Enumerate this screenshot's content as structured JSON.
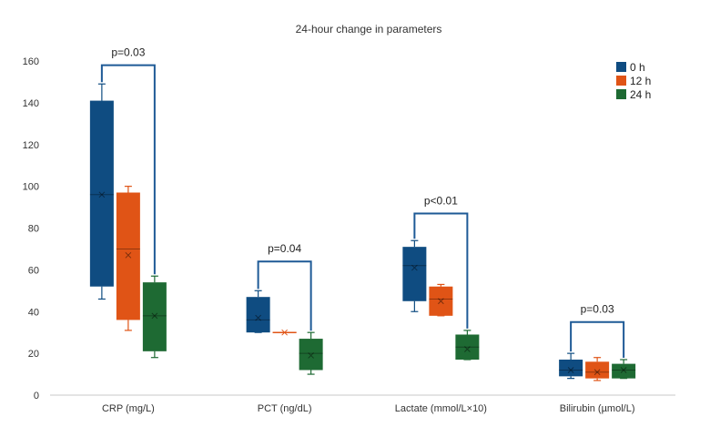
{
  "chart_data": {
    "type": "box",
    "title": "24-hour change in parameters",
    "ylim": [
      0,
      160
    ],
    "yticks": [
      0,
      20,
      40,
      60,
      80,
      100,
      120,
      140,
      160
    ],
    "ytick_labels": [
      "0",
      "20",
      "40",
      "60",
      "80",
      "100",
      "120",
      "140",
      "160"
    ],
    "categories": [
      "CRP (mg/L)",
      "PCT (ng/dL)",
      "Lactate (mmol/L×10)",
      "Bilirubin (µmol/L)"
    ],
    "series": [
      {
        "name": "0 h",
        "color": "#0f4c81",
        "boxes": [
          {
            "min": 46,
            "q1": 52,
            "median": 96,
            "mean": 96,
            "q3": 141,
            "max": 149
          },
          {
            "min": 30,
            "q1": 30,
            "median": 36,
            "mean": 37,
            "q3": 47,
            "max": 50
          },
          {
            "min": 40,
            "q1": 45,
            "median": 62,
            "mean": 61,
            "q3": 71,
            "max": 74
          },
          {
            "min": 8,
            "q1": 9,
            "median": 12,
            "mean": 12,
            "q3": 17,
            "max": 20
          }
        ]
      },
      {
        "name": "12 h",
        "color": "#e05416",
        "boxes": [
          {
            "min": 31,
            "q1": 36,
            "median": 70,
            "mean": 67,
            "q3": 97,
            "max": 100
          },
          {
            "min": 30,
            "q1": 30,
            "median": 30,
            "mean": 30,
            "q3": 30,
            "max": 30
          },
          {
            "min": 38,
            "q1": 38,
            "median": 46,
            "mean": 45,
            "q3": 52,
            "max": 53
          },
          {
            "min": 7,
            "q1": 8,
            "median": 11,
            "mean": 11,
            "q3": 16,
            "max": 18
          }
        ]
      },
      {
        "name": "24 h",
        "color": "#1e6a33",
        "boxes": [
          {
            "min": 18,
            "q1": 21,
            "median": 38,
            "mean": 38,
            "q3": 54,
            "max": 57
          },
          {
            "min": 10,
            "q1": 12,
            "median": 20,
            "mean": 19,
            "q3": 27,
            "max": 30
          },
          {
            "min": 17,
            "q1": 17,
            "median": 23,
            "mean": 22,
            "q3": 29,
            "max": 31
          },
          {
            "min": 8,
            "q1": 8,
            "median": 12,
            "mean": 12,
            "q3": 15,
            "max": 17
          }
        ]
      }
    ],
    "annotations": [
      {
        "text": "p=0.03",
        "category": 0,
        "y": 158
      },
      {
        "text": "p=0.04",
        "category": 1,
        "y": 64
      },
      {
        "text": "p<0.01",
        "category": 2,
        "y": 87
      },
      {
        "text": "p=0.03",
        "category": 3,
        "y": 35
      }
    ],
    "legend": {
      "position": "top-right",
      "entries": [
        "0 h",
        "12 h",
        "24 h"
      ]
    },
    "grid": false,
    "bracket_color": "#1e5a96"
  }
}
